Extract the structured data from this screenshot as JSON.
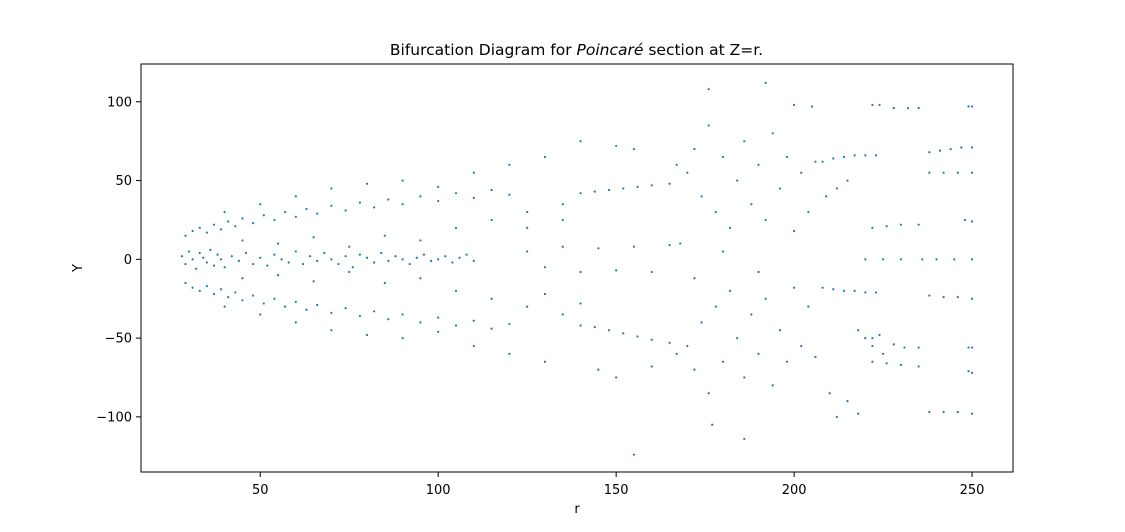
{
  "chart_data": {
    "type": "scatter",
    "title_prefix": "Bifurcation Diagram for ",
    "title_italic": "Poincaré",
    "title_suffix": " section at Z=r.",
    "xlabel": "r",
    "ylabel": "Y",
    "xlim": [
      16.5,
      261.5
    ],
    "ylim": [
      -135,
      124
    ],
    "xticks": [
      50,
      100,
      150,
      200,
      250
    ],
    "xtick_labels": [
      "50",
      "100",
      "150",
      "200",
      "250"
    ],
    "yticks": [
      -100,
      -50,
      0,
      50,
      100
    ],
    "ytick_labels": [
      "−100",
      "−50",
      "0",
      "50",
      "100"
    ],
    "grid": false,
    "marker_color": "#1f77b4",
    "series": [
      {
        "points": [
          [
            28,
            2
          ],
          [
            29,
            -3
          ],
          [
            30,
            5
          ],
          [
            31,
            0
          ],
          [
            32,
            -6
          ],
          [
            33,
            4
          ],
          [
            34,
            1
          ],
          [
            35,
            -2
          ],
          [
            36,
            6
          ],
          [
            37,
            -4
          ],
          [
            38,
            3
          ],
          [
            39,
            0
          ],
          [
            40,
            -5
          ],
          [
            42,
            2
          ],
          [
            44,
            -1
          ],
          [
            46,
            4
          ],
          [
            48,
            -3
          ],
          [
            50,
            1
          ],
          [
            52,
            -4
          ],
          [
            54,
            3
          ],
          [
            56,
            0
          ],
          [
            58,
            -2
          ],
          [
            60,
            5
          ],
          [
            62,
            -3
          ],
          [
            64,
            2
          ],
          [
            66,
            -1
          ],
          [
            68,
            4
          ],
          [
            70,
            0
          ],
          [
            72,
            -3
          ],
          [
            74,
            2
          ],
          [
            76,
            -5
          ],
          [
            78,
            3
          ],
          [
            80,
            1
          ],
          [
            82,
            -2
          ],
          [
            84,
            4
          ],
          [
            86,
            -1
          ],
          [
            88,
            2
          ],
          [
            90,
            0
          ],
          [
            92,
            -3
          ],
          [
            94,
            1
          ],
          [
            96,
            3
          ],
          [
            98,
            -1
          ],
          [
            100,
            0
          ],
          [
            102,
            2
          ],
          [
            104,
            -2
          ],
          [
            106,
            1
          ],
          [
            108,
            3
          ],
          [
            110,
            -1
          ],
          [
            29,
            15
          ],
          [
            31,
            18
          ],
          [
            33,
            20
          ],
          [
            35,
            17
          ],
          [
            37,
            22
          ],
          [
            39,
            19
          ],
          [
            41,
            24
          ],
          [
            43,
            21
          ],
          [
            45,
            26
          ],
          [
            48,
            23
          ],
          [
            51,
            28
          ],
          [
            54,
            25
          ],
          [
            57,
            30
          ],
          [
            60,
            27
          ],
          [
            63,
            32
          ],
          [
            66,
            29
          ],
          [
            70,
            34
          ],
          [
            74,
            31
          ],
          [
            78,
            36
          ],
          [
            82,
            33
          ],
          [
            86,
            38
          ],
          [
            90,
            35
          ],
          [
            95,
            40
          ],
          [
            100,
            37
          ],
          [
            105,
            42
          ],
          [
            110,
            39
          ],
          [
            115,
            44
          ],
          [
            120,
            41
          ],
          [
            29,
            -15
          ],
          [
            31,
            -18
          ],
          [
            33,
            -20
          ],
          [
            35,
            -17
          ],
          [
            37,
            -22
          ],
          [
            39,
            -19
          ],
          [
            41,
            -24
          ],
          [
            43,
            -21
          ],
          [
            45,
            -26
          ],
          [
            48,
            -23
          ],
          [
            51,
            -28
          ],
          [
            54,
            -25
          ],
          [
            57,
            -30
          ],
          [
            60,
            -27
          ],
          [
            63,
            -32
          ],
          [
            66,
            -29
          ],
          [
            70,
            -34
          ],
          [
            74,
            -31
          ],
          [
            78,
            -36
          ],
          [
            82,
            -33
          ],
          [
            86,
            -38
          ],
          [
            90,
            -35
          ],
          [
            95,
            -40
          ],
          [
            100,
            -37
          ],
          [
            105,
            -42
          ],
          [
            110,
            -39
          ],
          [
            115,
            -44
          ],
          [
            120,
            -41
          ],
          [
            40,
            30
          ],
          [
            45,
            12
          ],
          [
            50,
            35
          ],
          [
            55,
            10
          ],
          [
            60,
            40
          ],
          [
            65,
            14
          ],
          [
            70,
            45
          ],
          [
            75,
            8
          ],
          [
            80,
            48
          ],
          [
            85,
            15
          ],
          [
            90,
            50
          ],
          [
            95,
            12
          ],
          [
            100,
            46
          ],
          [
            105,
            20
          ],
          [
            110,
            55
          ],
          [
            115,
            25
          ],
          [
            120,
            60
          ],
          [
            125,
            30
          ],
          [
            130,
            65
          ],
          [
            135,
            35
          ],
          [
            40,
            -30
          ],
          [
            45,
            -12
          ],
          [
            50,
            -35
          ],
          [
            55,
            -10
          ],
          [
            60,
            -40
          ],
          [
            65,
            -14
          ],
          [
            70,
            -45
          ],
          [
            75,
            -8
          ],
          [
            80,
            -48
          ],
          [
            85,
            -15
          ],
          [
            90,
            -50
          ],
          [
            95,
            -12
          ],
          [
            100,
            -46
          ],
          [
            105,
            -20
          ],
          [
            110,
            -55
          ],
          [
            115,
            -25
          ],
          [
            120,
            -60
          ],
          [
            125,
            -30
          ],
          [
            130,
            -65
          ],
          [
            135,
            -35
          ],
          [
            125,
            5
          ],
          [
            130,
            -5
          ],
          [
            135,
            8
          ],
          [
            140,
            -8
          ],
          [
            145,
            7
          ],
          [
            150,
            -7
          ],
          [
            155,
            8
          ],
          [
            160,
            -8
          ],
          [
            165,
            9
          ],
          [
            125,
            20
          ],
          [
            130,
            -22
          ],
          [
            135,
            25
          ],
          [
            140,
            -28
          ],
          [
            140,
            42
          ],
          [
            144,
            43
          ],
          [
            148,
            44
          ],
          [
            152,
            45
          ],
          [
            156,
            46
          ],
          [
            160,
            47
          ],
          [
            165,
            48
          ],
          [
            140,
            -42
          ],
          [
            144,
            -43
          ],
          [
            148,
            -45
          ],
          [
            152,
            -47
          ],
          [
            156,
            -49
          ],
          [
            160,
            -51
          ],
          [
            165,
            -53
          ],
          [
            140,
            75
          ],
          [
            150,
            72
          ],
          [
            155,
            70
          ],
          [
            160,
            -68
          ],
          [
            150,
            -75
          ],
          [
            145,
            -70
          ],
          [
            155,
            -124
          ],
          [
            167,
            60
          ],
          [
            170,
            55
          ],
          [
            172,
            70
          ],
          [
            174,
            40
          ],
          [
            176,
            85
          ],
          [
            178,
            30
          ],
          [
            180,
            65
          ],
          [
            182,
            20
          ],
          [
            184,
            50
          ],
          [
            186,
            75
          ],
          [
            188,
            35
          ],
          [
            190,
            60
          ],
          [
            192,
            25
          ],
          [
            194,
            80
          ],
          [
            196,
            45
          ],
          [
            198,
            65
          ],
          [
            200,
            18
          ],
          [
            202,
            55
          ],
          [
            204,
            30
          ],
          [
            206,
            62
          ],
          [
            167,
            -60
          ],
          [
            170,
            -55
          ],
          [
            172,
            -70
          ],
          [
            174,
            -40
          ],
          [
            176,
            -85
          ],
          [
            178,
            -30
          ],
          [
            180,
            -65
          ],
          [
            182,
            -20
          ],
          [
            184,
            -50
          ],
          [
            186,
            -75
          ],
          [
            188,
            -35
          ],
          [
            190,
            -60
          ],
          [
            192,
            -25
          ],
          [
            194,
            -80
          ],
          [
            196,
            -45
          ],
          [
            198,
            -65
          ],
          [
            200,
            -18
          ],
          [
            202,
            -55
          ],
          [
            204,
            -30
          ],
          [
            206,
            -62
          ],
          [
            176,
            108
          ],
          [
            192,
            112
          ],
          [
            186,
            -114
          ],
          [
            177,
            -105
          ],
          [
            200,
            98
          ],
          [
            205,
            97
          ],
          [
            168,
            10
          ],
          [
            172,
            -12
          ],
          [
            180,
            5
          ],
          [
            190,
            -8
          ],
          [
            208,
            62
          ],
          [
            211,
            64
          ],
          [
            214,
            65
          ],
          [
            217,
            66
          ],
          [
            220,
            66
          ],
          [
            223,
            66
          ],
          [
            208,
            -18
          ],
          [
            211,
            -19
          ],
          [
            214,
            -20
          ],
          [
            217,
            -20
          ],
          [
            220,
            -21
          ],
          [
            223,
            -21
          ],
          [
            209,
            40
          ],
          [
            212,
            45
          ],
          [
            215,
            50
          ],
          [
            218,
            -45
          ],
          [
            220,
            -50
          ],
          [
            215,
            -90
          ],
          [
            218,
            -98
          ],
          [
            212,
            -100
          ],
          [
            210,
            -85
          ],
          [
            222,
            98
          ],
          [
            224,
            98
          ],
          [
            228,
            96
          ],
          [
            232,
            96
          ],
          [
            235,
            96
          ],
          [
            222,
            20
          ],
          [
            226,
            21
          ],
          [
            230,
            22
          ],
          [
            235,
            22
          ],
          [
            222,
            -55
          ],
          [
            225,
            -60
          ],
          [
            228,
            -54
          ],
          [
            231,
            -56
          ],
          [
            235,
            -56
          ],
          [
            222,
            -65
          ],
          [
            226,
            -66
          ],
          [
            230,
            -67
          ],
          [
            235,
            -68
          ],
          [
            222,
            -50
          ],
          [
            224,
            -48
          ],
          [
            238,
            68
          ],
          [
            241,
            69
          ],
          [
            244,
            70
          ],
          [
            247,
            71
          ],
          [
            250,
            71
          ],
          [
            238,
            55
          ],
          [
            242,
            55
          ],
          [
            246,
            55
          ],
          [
            250,
            55
          ],
          [
            238,
            -23
          ],
          [
            242,
            -24
          ],
          [
            246,
            -24
          ],
          [
            250,
            -25
          ],
          [
            238,
            -97
          ],
          [
            242,
            -97
          ],
          [
            246,
            -97
          ],
          [
            250,
            -98
          ],
          [
            248,
            25
          ],
          [
            250,
            24
          ],
          [
            249,
            97
          ],
          [
            250,
            97
          ],
          [
            249,
            -56
          ],
          [
            250,
            -56
          ],
          [
            249,
            -71
          ],
          [
            250,
            -72
          ],
          [
            220,
            0
          ],
          [
            225,
            0
          ],
          [
            230,
            0
          ],
          [
            236,
            0
          ],
          [
            240,
            0
          ],
          [
            245,
            0
          ],
          [
            250,
            0
          ]
        ]
      }
    ]
  }
}
